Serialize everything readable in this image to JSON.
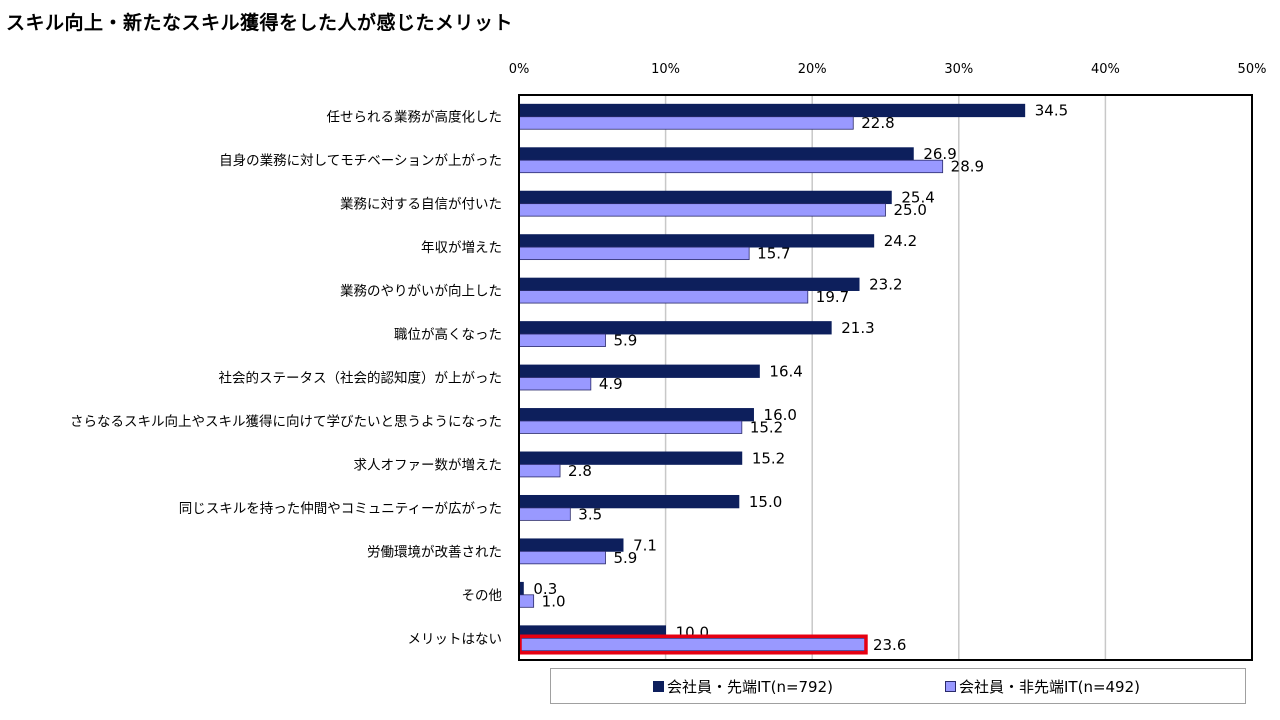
{
  "chart_data": {
    "type": "bar",
    "orientation": "horizontal",
    "title": "スキル向上・新たなスキル獲得をした人が感じたメリット",
    "categories": [
      "任せられる業務が高度化した",
      "自身の業務に対してモチベーションが上がった",
      "業務に対する自信が付いた",
      "年収が増えた",
      "業務のやりがいが向上した",
      "職位が高くなった",
      "社会的ステータス（社会的認知度）が上がった",
      "さらなるスキル向上やスキル獲得に向けて学びたいと思うようになった",
      "求人オファー数が増えた",
      "同じスキルを持った仲間やコミュニティーが広がった",
      "労働環境が改善された",
      "その他",
      "メリットはない"
    ],
    "series": [
      {
        "name": "会社員・先端IT(n=792)",
        "color": "#0d1f5c",
        "values": [
          34.5,
          26.9,
          25.4,
          24.2,
          23.2,
          21.3,
          16.4,
          16.0,
          15.2,
          15.0,
          7.1,
          0.3,
          10.0
        ]
      },
      {
        "name": "会社員・非先端IT(n=492)",
        "color": "#9999ff",
        "values": [
          22.8,
          28.9,
          25.0,
          15.7,
          19.7,
          5.9,
          4.9,
          15.2,
          2.8,
          3.5,
          5.9,
          1.0,
          23.6
        ]
      }
    ],
    "xlim": [
      0,
      50
    ],
    "xticks": [
      "0%",
      "10%",
      "20%",
      "30%",
      "40%",
      "50%"
    ],
    "grid": true,
    "legend_position": "bottom",
    "highlight": {
      "series": 1,
      "category": 12,
      "color": "#e60012"
    }
  }
}
